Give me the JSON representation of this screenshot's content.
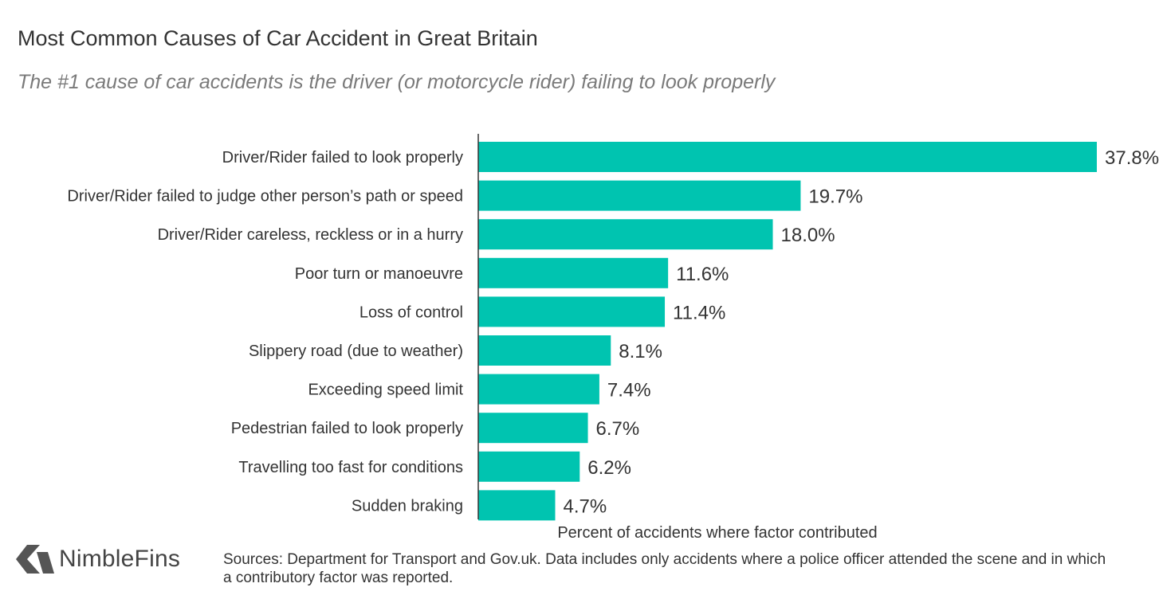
{
  "header": {
    "title": "Most Common Causes of Car Accident in Great Britain",
    "subtitle": "The #1 cause of car accidents is the driver (or motorcycle rider) failing to look properly"
  },
  "chart_data": {
    "type": "bar",
    "orientation": "horizontal",
    "categories": [
      "Driver/Rider failed to look properly",
      "Driver/Rider failed to judge other person’s path or speed",
      "Driver/Rider careless, reckless or in a hurry",
      "Poor turn or manoeuvre",
      "Loss of control",
      "Slippery road (due to weather)",
      "Exceeding speed limit",
      "Pedestrian failed to look properly",
      "Travelling too fast for conditions",
      "Sudden braking"
    ],
    "values": [
      37.8,
      19.7,
      18.0,
      11.6,
      11.4,
      8.1,
      7.4,
      6.7,
      6.2,
      4.7
    ],
    "value_labels": [
      "37.8%",
      "19.7%",
      "18.0%",
      "11.6%",
      "11.4%",
      "8.1%",
      "7.4%",
      "6.7%",
      "6.2%",
      "4.7%"
    ],
    "title": "Most Common Causes of Car Accident in Great Britain",
    "subtitle": "The #1 cause of car accidents is the driver (or motorcycle rider) failing to look properly",
    "xlabel": "Percent of accidents where factor contributed",
    "ylabel": "",
    "xlim": [
      0,
      37.8
    ],
    "grid": false,
    "legend": "none",
    "bar_color": "#00c4b0"
  },
  "footer": {
    "brand": "NimbleFins",
    "brand_icon": "nimblefins-chevron-icon",
    "brand_color": "#555555",
    "sources": "Sources: Department for Transport and Gov.uk. Data includes only accidents where a police officer attended the scene and in which a contributory factor was reported."
  }
}
